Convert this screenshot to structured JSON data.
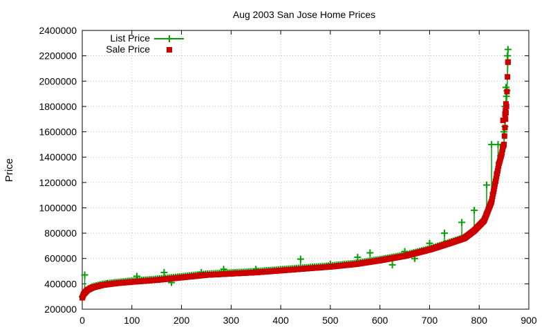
{
  "chart_data": {
    "type": "scatter",
    "title": "Aug 2003 San Jose Home Prices",
    "xlabel": "",
    "ylabel": "Price",
    "xlim": [
      0,
      900
    ],
    "ylim": [
      200000,
      2400000
    ],
    "xticks": [
      "0",
      "100",
      "200",
      "300",
      "400",
      "500",
      "600",
      "700",
      "800",
      "900"
    ],
    "yticks": [
      "200000",
      "400000",
      "600000",
      "800000",
      "1000000",
      "1200000",
      "1400000",
      "1600000",
      "1800000",
      "2000000",
      "2200000",
      "2400000"
    ],
    "grid": true,
    "legend_position": "top-left",
    "colors": {
      "list": "#00a000",
      "sale": "#cc0000"
    },
    "curve_knots": {
      "x": [
        0,
        3,
        10,
        20,
        40,
        70,
        100,
        150,
        200,
        250,
        300,
        350,
        400,
        450,
        500,
        550,
        600,
        650,
        700,
        740,
        770,
        790,
        800,
        810,
        820,
        825,
        830,
        835,
        840,
        845,
        848,
        850,
        853,
        855,
        858
      ],
      "y": [
        290000,
        320000,
        350000,
        370000,
        390000,
        405000,
        415000,
        430000,
        450000,
        470000,
        480000,
        490000,
        505000,
        520000,
        535000,
        555000,
        585000,
        620000,
        670000,
        720000,
        760000,
        820000,
        860000,
        900000,
        1000000,
        1050000,
        1150000,
        1250000,
        1350000,
        1420000,
        1480000,
        1500000,
        1700000,
        1800000,
        2150000
      ]
    },
    "series": [
      {
        "name": "List Price",
        "outliers": [
          [
            5,
            470000
          ],
          [
            50,
            400000
          ],
          [
            110,
            460000
          ],
          [
            165,
            490000
          ],
          [
            180,
            410000
          ],
          [
            240,
            490000
          ],
          [
            285,
            515000
          ],
          [
            350,
            515000
          ],
          [
            440,
            595000
          ],
          [
            500,
            555000
          ],
          [
            555,
            610000
          ],
          [
            580,
            645000
          ],
          [
            625,
            550000
          ],
          [
            650,
            655000
          ],
          [
            670,
            600000
          ],
          [
            700,
            720000
          ],
          [
            730,
            800000
          ],
          [
            765,
            885000
          ],
          [
            790,
            980000
          ],
          [
            815,
            1180000
          ],
          [
            825,
            1500000
          ],
          [
            838,
            1500000
          ],
          [
            843,
            1410000
          ],
          [
            850,
            1600000
          ],
          [
            852,
            1800000
          ],
          [
            854,
            1950000
          ],
          [
            855,
            1880000
          ],
          [
            857,
            2200000
          ],
          [
            858,
            2250000
          ]
        ]
      },
      {
        "name": "Sale Price",
        "outliers": [
          [
            848,
            1690000
          ],
          [
            852,
            1740000
          ],
          [
            853,
            1770000
          ],
          [
            854,
            1820000
          ],
          [
            858,
            2150000
          ]
        ]
      }
    ]
  }
}
